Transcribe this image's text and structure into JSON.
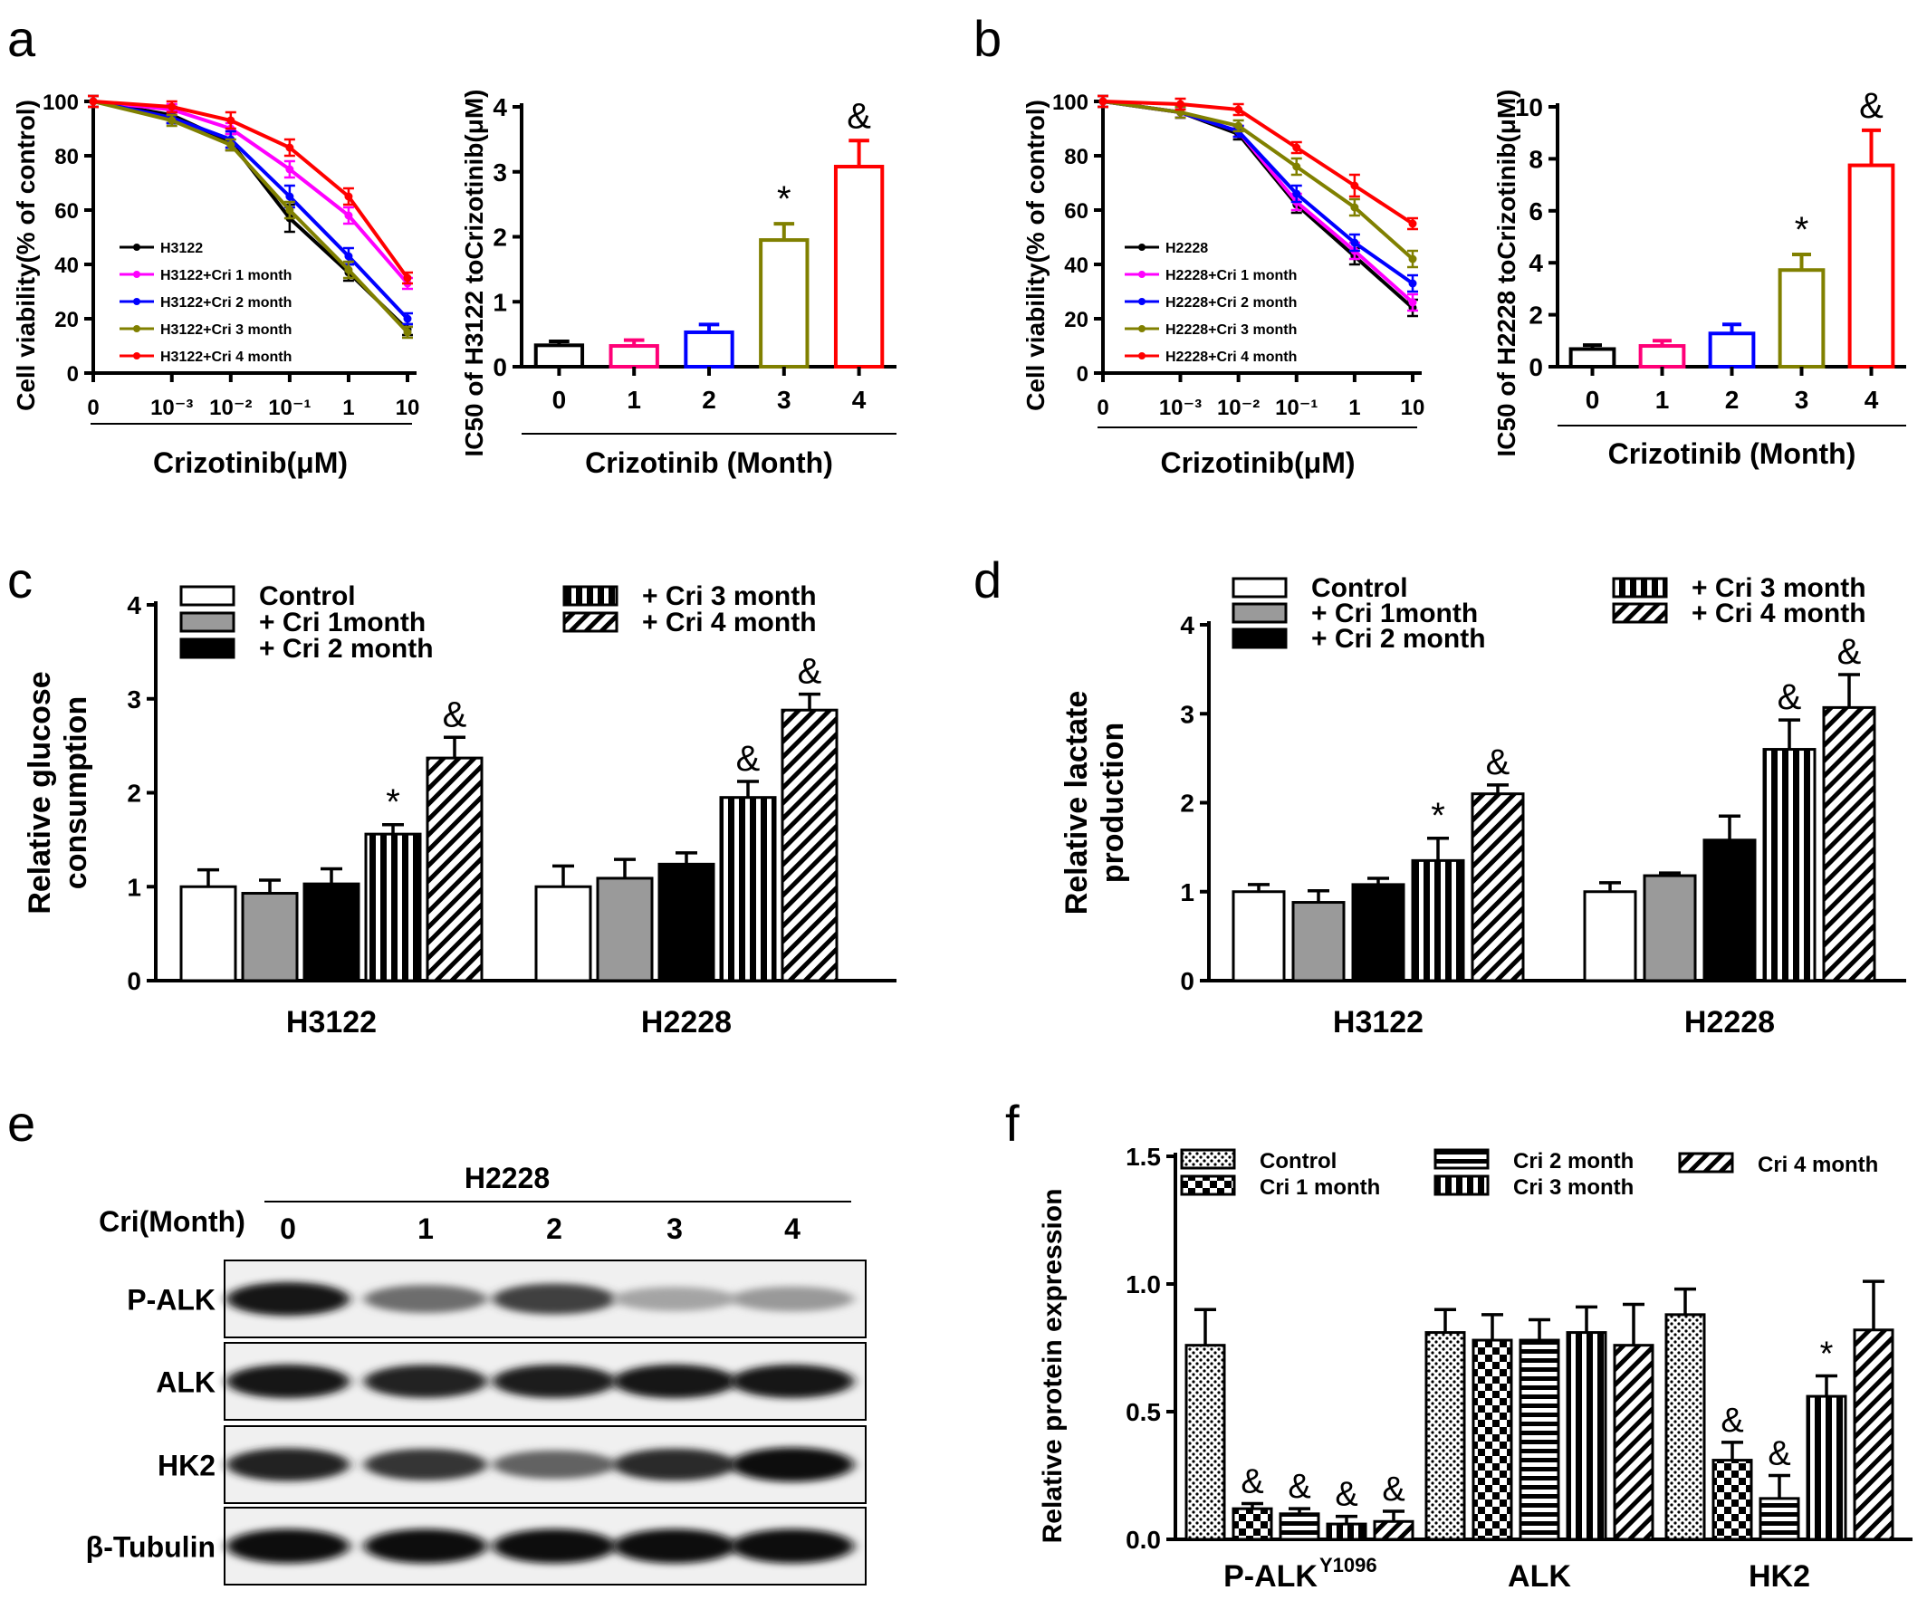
{
  "figure": {
    "panel_letters": [
      "a",
      "b",
      "c",
      "d",
      "e",
      "f"
    ]
  },
  "chart_data": [
    {
      "id": "a1",
      "type": "line",
      "panel": "a",
      "title": "",
      "xlabel": "Crizotinib(μM)",
      "ylabel": "Cell viability(% of control)",
      "x": [
        0,
        0.001,
        0.01,
        0.1,
        1,
        10
      ],
      "x_ticks": [
        "0",
        "10⁻³",
        "10⁻²",
        "10⁻¹",
        "1",
        "10"
      ],
      "xscale": "log (0 at origin)",
      "ylim": [
        0,
        100
      ],
      "y_ticks": [
        0,
        20,
        40,
        60,
        80,
        100
      ],
      "legend_position": "bottom-left",
      "series": [
        {
          "name": "H3122",
          "color": "#000000",
          "values": [
            100,
            95,
            85,
            57,
            37,
            16
          ],
          "errors": [
            2,
            3,
            3,
            5,
            3,
            2
          ]
        },
        {
          "name": "H3122+Cri  1 month",
          "color": "#ff00ff",
          "values": [
            100,
            97,
            90,
            75,
            58,
            33
          ],
          "errors": [
            2,
            2,
            2,
            3,
            3,
            2
          ]
        },
        {
          "name": "H3122+Cri  2 month",
          "color": "#0000ff",
          "values": [
            100,
            94,
            86,
            65,
            43,
            20
          ],
          "errors": [
            2,
            2,
            3,
            4,
            3,
            2
          ]
        },
        {
          "name": "H3122+Cri  3 month",
          "color": "#808000",
          "values": [
            100,
            93,
            84,
            60,
            38,
            15
          ],
          "errors": [
            2,
            2,
            2,
            3,
            3,
            2
          ]
        },
        {
          "name": "H3122+Cri  4 month",
          "color": "#ff0000",
          "values": [
            100,
            98,
            93,
            83,
            65,
            35
          ],
          "errors": [
            2,
            2,
            3,
            3,
            3,
            2
          ]
        }
      ]
    },
    {
      "id": "a2",
      "type": "bar",
      "panel": "a",
      "title": "",
      "xlabel": "Crizotinib (Month)",
      "ylabel": "IC50 of H3122 toCrizotinib(μM)",
      "categories": [
        "0",
        "1",
        "2",
        "3",
        "4"
      ],
      "values": [
        0.33,
        0.32,
        0.53,
        1.95,
        3.08
      ],
      "errors": [
        0.06,
        0.09,
        0.12,
        0.25,
        0.4
      ],
      "colors": [
        "#000000",
        "#ff0077",
        "#0000ff",
        "#808000",
        "#ff0000"
      ],
      "annotations": [
        "",
        "",
        "",
        "*",
        "&"
      ],
      "ylim": [
        0,
        4
      ],
      "y_ticks": [
        0,
        1,
        2,
        3,
        4
      ]
    },
    {
      "id": "b1",
      "type": "line",
      "panel": "b",
      "title": "",
      "xlabel": "Crizotinib(μM)",
      "ylabel": "Cell viability(% of control)",
      "x": [
        0,
        0.001,
        0.01,
        0.1,
        1,
        10
      ],
      "x_ticks": [
        "0",
        "10⁻³",
        "10⁻²",
        "10⁻¹",
        "1",
        "10"
      ],
      "xscale": "log (0 at origin)",
      "ylim": [
        0,
        100
      ],
      "y_ticks": [
        0,
        20,
        40,
        60,
        80,
        100
      ],
      "legend_position": "bottom-left",
      "series": [
        {
          "name": "H2228",
          "color": "#000000",
          "values": [
            100,
            96,
            88,
            62,
            43,
            24
          ],
          "errors": [
            2,
            2,
            2,
            3,
            3,
            3
          ]
        },
        {
          "name": "H2228+Cri 1 month",
          "color": "#ff00ff",
          "values": [
            100,
            96,
            89,
            63,
            45,
            26
          ],
          "errors": [
            2,
            2,
            2,
            3,
            3,
            3
          ]
        },
        {
          "name": "H2228+Cri 2 month",
          "color": "#0000ff",
          "values": [
            100,
            96,
            89,
            66,
            48,
            33
          ],
          "errors": [
            2,
            2,
            2,
            3,
            3,
            3
          ]
        },
        {
          "name": "H2228+Cri 3 month",
          "color": "#808000",
          "values": [
            100,
            96,
            91,
            76,
            61,
            42
          ],
          "errors": [
            2,
            2,
            2,
            3,
            3,
            3
          ]
        },
        {
          "name": "H2228+Cri 4 month",
          "color": "#ff0000",
          "values": [
            100,
            99,
            97,
            83,
            69,
            55
          ],
          "errors": [
            2,
            2,
            2,
            2,
            4,
            2
          ]
        }
      ]
    },
    {
      "id": "b2",
      "type": "bar",
      "panel": "b",
      "title": "",
      "xlabel": "Crizotinib (Month)",
      "ylabel": "IC50 of H2228 toCrizotinib(μM)",
      "categories": [
        "0",
        "1",
        "2",
        "3",
        "4"
      ],
      "values": [
        0.68,
        0.8,
        1.28,
        3.72,
        7.75
      ],
      "errors": [
        0.15,
        0.2,
        0.35,
        0.6,
        1.35
      ],
      "colors": [
        "#000000",
        "#ff0077",
        "#0000ff",
        "#808000",
        "#ff0000"
      ],
      "annotations": [
        "",
        "",
        "",
        "*",
        "&"
      ],
      "ylim": [
        0,
        10
      ],
      "y_ticks": [
        0,
        2,
        4,
        6,
        8,
        10
      ]
    },
    {
      "id": "c",
      "type": "bar",
      "panel": "c",
      "title": "",
      "xlabel": "",
      "ylabel": "Relative glucose consumption",
      "ylabel_lines": [
        "Relative glucose",
        "consumption"
      ],
      "categories": [
        "H3122",
        "H2228"
      ],
      "ylim": [
        0,
        4
      ],
      "y_ticks": [
        0,
        1,
        2,
        3,
        4
      ],
      "series": [
        {
          "name": "Control",
          "pattern": "white",
          "values": [
            1.0,
            1.0
          ],
          "errors": [
            0.18,
            0.22
          ],
          "annotations": [
            "",
            ""
          ]
        },
        {
          "name": "+ Cri 1month",
          "pattern": "gray",
          "values": [
            0.93,
            1.09
          ],
          "errors": [
            0.14,
            0.2
          ],
          "annotations": [
            "",
            ""
          ]
        },
        {
          "name": "+ Cri 2 month",
          "pattern": "black",
          "values": [
            1.03,
            1.24
          ],
          "errors": [
            0.16,
            0.12
          ],
          "annotations": [
            "",
            ""
          ]
        },
        {
          "name": "+ Cri 3 month",
          "pattern": "vstripe",
          "values": [
            1.56,
            1.95
          ],
          "errors": [
            0.1,
            0.17
          ],
          "annotations": [
            "*",
            "&"
          ]
        },
        {
          "name": "+ Cri 4 month",
          "pattern": "diag",
          "values": [
            2.37,
            2.88
          ],
          "errors": [
            0.22,
            0.17
          ],
          "annotations": [
            "&",
            "&"
          ]
        }
      ]
    },
    {
      "id": "d",
      "type": "bar",
      "panel": "d",
      "title": "",
      "xlabel": "",
      "ylabel": "Relative lactate production",
      "ylabel_lines": [
        "Relative lactate",
        "production"
      ],
      "categories": [
        "H3122",
        "H2228"
      ],
      "ylim": [
        0,
        4
      ],
      "y_ticks": [
        0,
        1,
        2,
        3,
        4
      ],
      "series": [
        {
          "name": "Control",
          "pattern": "white",
          "values": [
            1.0,
            1.0
          ],
          "errors": [
            0.08,
            0.1
          ],
          "annotations": [
            "",
            ""
          ]
        },
        {
          "name": "+ Cri 1month",
          "pattern": "gray",
          "values": [
            0.88,
            1.18
          ],
          "errors": [
            0.13,
            0.03
          ],
          "annotations": [
            "",
            ""
          ]
        },
        {
          "name": "+ Cri 2 month",
          "pattern": "black",
          "values": [
            1.08,
            1.58
          ],
          "errors": [
            0.07,
            0.27
          ],
          "annotations": [
            "",
            ""
          ]
        },
        {
          "name": "+ Cri 3 month",
          "pattern": "vstripe",
          "values": [
            1.35,
            2.6
          ],
          "errors": [
            0.25,
            0.33
          ],
          "annotations": [
            "*",
            "&"
          ]
        },
        {
          "name": "+ Cri 4 month",
          "pattern": "diag",
          "values": [
            2.1,
            3.07
          ],
          "errors": [
            0.1,
            0.37
          ],
          "annotations": [
            "&",
            "&"
          ]
        }
      ]
    },
    {
      "id": "f",
      "type": "bar",
      "panel": "f",
      "title": "",
      "xlabel": "",
      "ylabel": "Relative protein expression",
      "categories": [
        "P-ALK",
        "ALK",
        "HK2"
      ],
      "category_superscripts": [
        "Y1096",
        "",
        ""
      ],
      "ylim": [
        0,
        1.5
      ],
      "y_ticks": [
        "0.0",
        "0.5",
        "1.0",
        "1.5"
      ],
      "series": [
        {
          "name": "Control",
          "pattern": "dots",
          "values": [
            0.76,
            0.81,
            0.88
          ],
          "errors": [
            0.14,
            0.09,
            0.1
          ],
          "annotations": [
            "",
            "",
            ""
          ]
        },
        {
          "name": "Cri 1 month",
          "pattern": "checker",
          "values": [
            0.12,
            0.78,
            0.31
          ],
          "errors": [
            0.02,
            0.1,
            0.07
          ],
          "annotations": [
            "&",
            "",
            "&"
          ]
        },
        {
          "name": "Cri 2 month",
          "pattern": "hstripe",
          "values": [
            0.1,
            0.78,
            0.16
          ],
          "errors": [
            0.02,
            0.08,
            0.09
          ],
          "annotations": [
            "&",
            "",
            "&"
          ]
        },
        {
          "name": "Cri 3 month",
          "pattern": "vstripe",
          "values": [
            0.06,
            0.81,
            0.56
          ],
          "errors": [
            0.03,
            0.1,
            0.08
          ],
          "annotations": [
            "&",
            "",
            "*"
          ]
        },
        {
          "name": "Cri 4 month",
          "pattern": "diag",
          "values": [
            0.07,
            0.76,
            0.82
          ],
          "errors": [
            0.04,
            0.16,
            0.19
          ],
          "annotations": [
            "&",
            "",
            ""
          ]
        }
      ]
    }
  ],
  "western_blot": {
    "panel": "e",
    "cell_line": "H2228",
    "column_header": "Cri(Month)",
    "lanes": [
      "0",
      "1",
      "2",
      "3",
      "4"
    ],
    "rows": [
      {
        "label": "P-ALK",
        "intensity": [
          0.95,
          0.55,
          0.75,
          0.3,
          0.35
        ]
      },
      {
        "label": "ALK",
        "intensity": [
          0.95,
          0.9,
          0.92,
          0.95,
          0.93
        ]
      },
      {
        "label": "HK2",
        "intensity": [
          0.9,
          0.8,
          0.6,
          0.85,
          1.0
        ]
      },
      {
        "label": "β-Tubulin",
        "intensity": [
          1.0,
          1.0,
          1.0,
          1.0,
          1.0
        ]
      }
    ]
  }
}
